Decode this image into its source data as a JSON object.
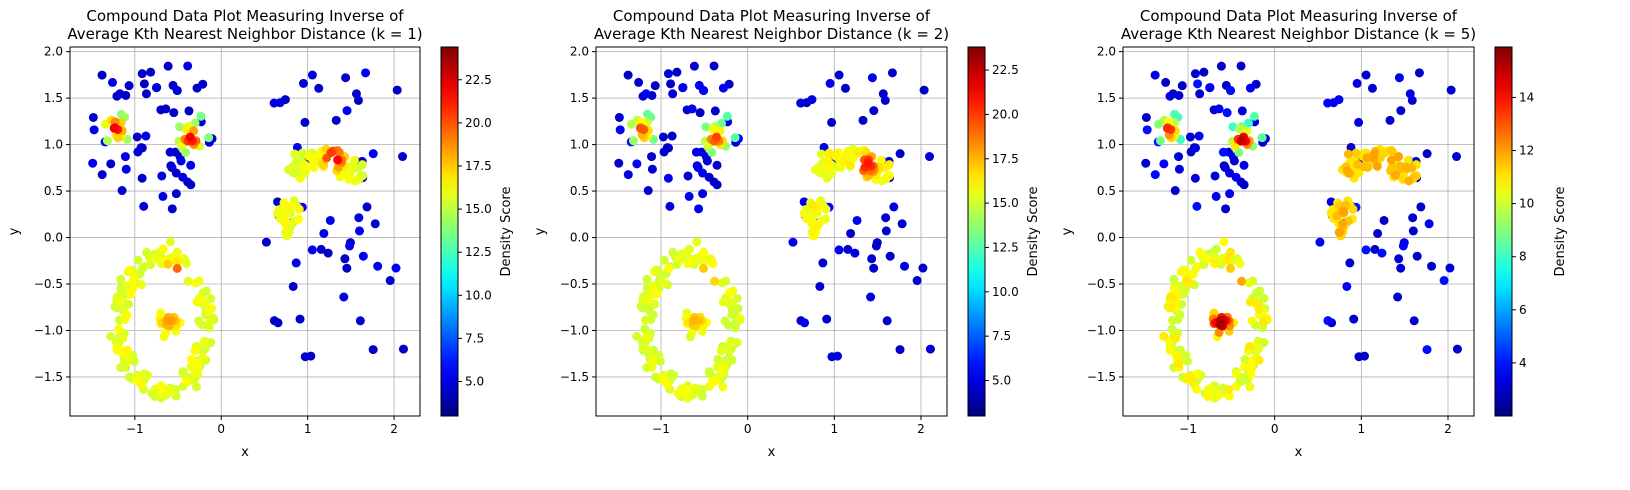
{
  "chart_data": [
    {
      "type": "scatter",
      "title_lines": [
        "Compound Data Plot Measuring Inverse of",
        "Average Kth Nearest Neighbor Distance (k = 1)"
      ],
      "xlabel": "x",
      "ylabel": "y",
      "xlim": [
        -1.75,
        2.3
      ],
      "ylim": [
        -1.92,
        2.05
      ],
      "xticks": [
        -1,
        0,
        1,
        2
      ],
      "yticks": [
        -1.5,
        -1.0,
        -0.5,
        0.0,
        0.5,
        1.0,
        1.5,
        2.0
      ],
      "grid": true,
      "colorbar": {
        "label": "Density Score",
        "min": 3.0,
        "max": 24.4,
        "ticks": [
          5.0,
          7.5,
          10.0,
          12.5,
          15.0,
          17.5,
          20.0,
          22.5
        ],
        "colormap": "jet"
      },
      "hotspots": [
        {
          "x": -1.23,
          "y": 1.17,
          "value": 22
        },
        {
          "x": -0.35,
          "y": 1.07,
          "value": 22
        },
        {
          "x": 1.3,
          "y": 0.85,
          "value": 23
        },
        {
          "x": 1.05,
          "y": 0.18,
          "value": 22
        },
        {
          "x": -0.55,
          "y": -0.38,
          "value": 21
        },
        {
          "x": -0.6,
          "y": -0.9,
          "value": 18.5
        }
      ],
      "density_scale": {
        "uniform": 4.5,
        "blob": 13.5,
        "crescent": 15.5,
        "ring": 15.5
      }
    },
    {
      "type": "scatter",
      "title_lines": [
        "Compound Data Plot Measuring Inverse of",
        "Average Kth Nearest Neighbor Distance (k = 2)"
      ],
      "xlabel": "x",
      "ylabel": "y",
      "xlim": [
        -1.75,
        2.3
      ],
      "ylim": [
        -1.92,
        2.05
      ],
      "xticks": [
        -1,
        0,
        1,
        2
      ],
      "yticks": [
        -1.5,
        -1.0,
        -0.5,
        0.0,
        0.5,
        1.0,
        1.5,
        2.0
      ],
      "grid": true,
      "colorbar": {
        "label": "Density Score",
        "min": 3.0,
        "max": 23.8,
        "ticks": [
          5.0,
          7.5,
          10.0,
          12.5,
          15.0,
          17.5,
          20.0,
          22.5
        ],
        "colormap": "jet"
      },
      "hotspots": [
        {
          "x": -1.23,
          "y": 1.15,
          "value": 20
        },
        {
          "x": -0.37,
          "y": 1.07,
          "value": 20
        },
        {
          "x": 1.38,
          "y": 0.78,
          "value": 21
        },
        {
          "x": -0.45,
          "y": -0.4,
          "value": 19
        },
        {
          "x": -0.6,
          "y": -0.9,
          "value": 17.5
        }
      ],
      "density_scale": {
        "uniform": 4.5,
        "blob": 12.5,
        "crescent": 15.5,
        "ring": 15.0
      }
    },
    {
      "type": "scatter",
      "title_lines": [
        "Compound Data Plot Measuring Inverse of",
        "Average Kth Nearest Neighbor Distance (k = 5)"
      ],
      "xlabel": "x",
      "ylabel": "y",
      "xlim": [
        -1.75,
        2.3
      ],
      "ylim": [
        -1.92,
        2.05
      ],
      "xticks": [
        -1,
        0,
        1,
        2
      ],
      "yticks": [
        -1.5,
        -1.0,
        -0.5,
        0.0,
        0.5,
        1.0,
        1.5,
        2.0
      ],
      "grid": true,
      "colorbar": {
        "label": "Density Score",
        "min": 2.0,
        "max": 15.9,
        "ticks": [
          4,
          6,
          8,
          10,
          12,
          14
        ],
        "colormap": "jet"
      },
      "hotspots": [
        {
          "x": -1.23,
          "y": 1.15,
          "value": 14
        },
        {
          "x": -0.37,
          "y": 1.05,
          "value": 15
        },
        {
          "x": -0.62,
          "y": -0.92,
          "value": 15.5
        },
        {
          "x": -0.45,
          "y": -0.42,
          "value": 13.5
        }
      ],
      "density_scale": {
        "uniform": 3.0,
        "blob": 7.5,
        "crescent": 11.0,
        "ring": 10.0
      }
    }
  ]
}
